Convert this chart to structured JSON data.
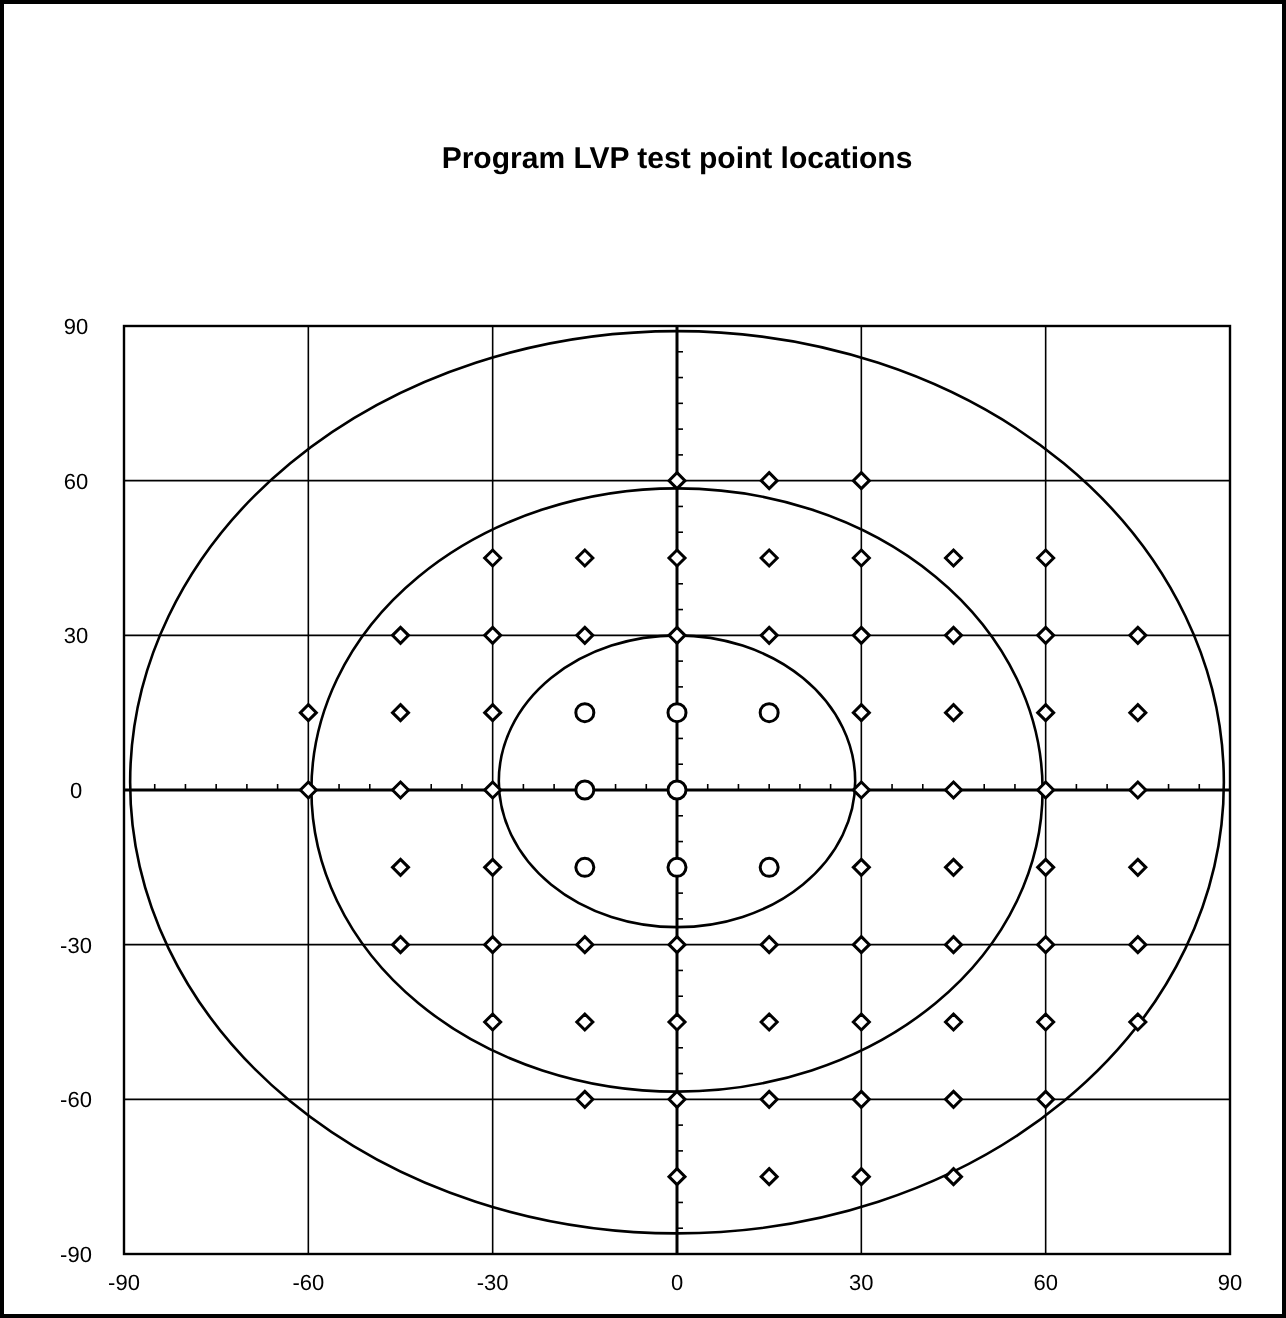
{
  "chart_data": {
    "type": "scatter",
    "title": "Program LVP test point locations",
    "xlim": [
      -90,
      90
    ],
    "ylim": [
      -90,
      90
    ],
    "xticks": [
      -90,
      -60,
      -30,
      0,
      30,
      60,
      90
    ],
    "yticks": [
      -90,
      -60,
      -30,
      0,
      30,
      60,
      90
    ],
    "grid": true,
    "series": [
      {
        "marker": "diamond",
        "color": "#000000",
        "x": [
          0,
          15,
          30,
          -30,
          -15,
          0,
          15,
          30,
          45,
          60,
          -45,
          -30,
          -15,
          0,
          15,
          30,
          45,
          60,
          75,
          -60,
          -45,
          -30,
          30,
          45,
          60,
          75,
          -60,
          -45,
          -30,
          30,
          45,
          60,
          75,
          -45,
          -30,
          30,
          45,
          60,
          75,
          -45,
          -30,
          -15,
          0,
          15,
          30,
          45,
          60,
          75,
          -30,
          -15,
          0,
          15,
          30,
          45,
          60,
          75,
          -15,
          0,
          15,
          30,
          45,
          60,
          0,
          15,
          30,
          45
        ],
        "values": [
          60,
          60,
          60,
          45,
          45,
          45,
          45,
          45,
          45,
          45,
          30,
          30,
          30,
          30,
          30,
          30,
          30,
          30,
          30,
          15,
          15,
          15,
          15,
          15,
          15,
          15,
          0,
          0,
          0,
          0,
          0,
          0,
          0,
          -15,
          -15,
          -15,
          -15,
          -15,
          -15,
          -30,
          -30,
          -30,
          -30,
          -30,
          -30,
          -30,
          -30,
          -30,
          -45,
          -45,
          -45,
          -45,
          -45,
          -45,
          -45,
          -45,
          -60,
          -60,
          -60,
          -60,
          -60,
          -60,
          -75,
          -75,
          -75,
          -75
        ]
      },
      {
        "marker": "circle",
        "color": "#000000",
        "x": [
          -15,
          0,
          15,
          -15,
          0,
          -15,
          0,
          15
        ],
        "values": [
          15,
          15,
          15,
          0,
          0,
          -15,
          -15,
          -15
        ]
      }
    ]
  }
}
